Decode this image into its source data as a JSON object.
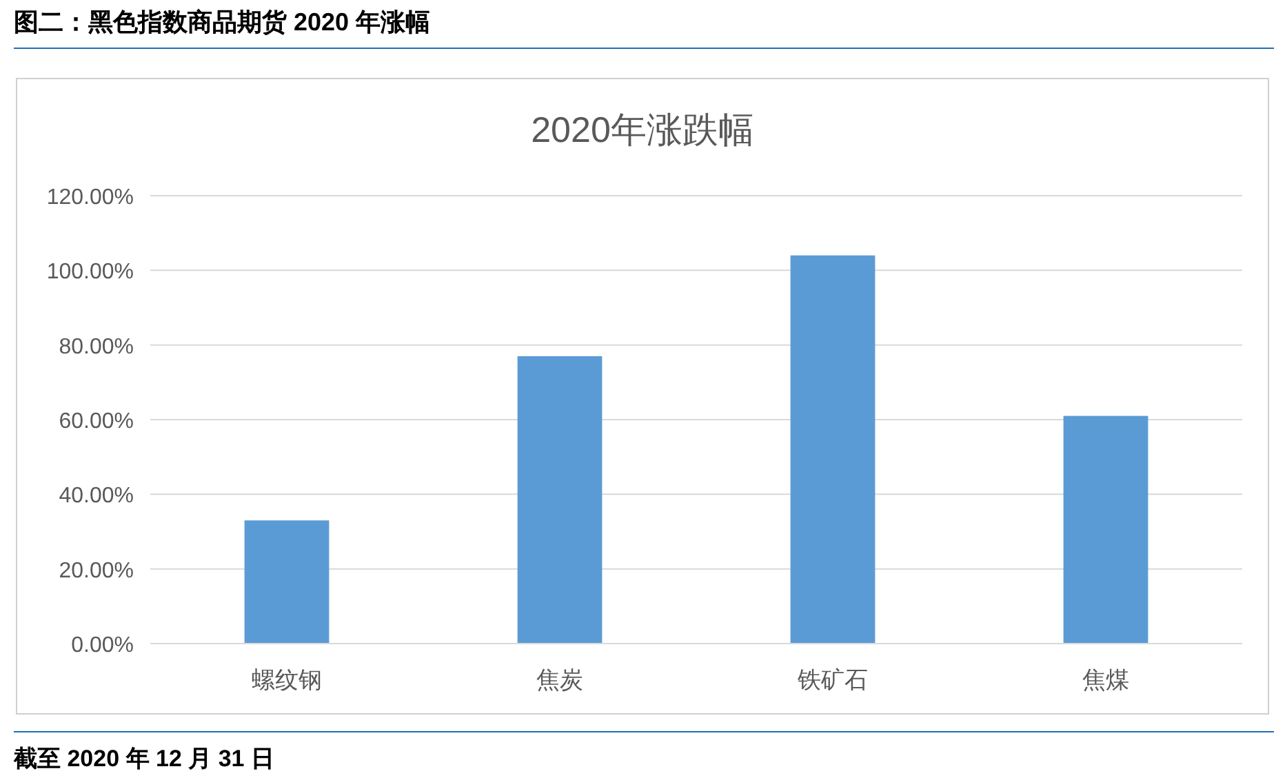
{
  "chart_data": {
    "type": "bar",
    "title": "图二：黑色指数商品期货 2020 年涨幅",
    "subtitle": "2020年涨跌幅",
    "categories": [
      "螺纹钢",
      "焦炭",
      "铁矿石",
      "焦煤"
    ],
    "values": [
      33,
      77,
      104,
      61
    ],
    "color": "#5b9bd5",
    "ylim": [
      0,
      120
    ],
    "yticks": [
      {
        "value": 0,
        "label": "0.00%"
      },
      {
        "value": 20,
        "label": "20.00%"
      },
      {
        "value": 40,
        "label": "40.00%"
      },
      {
        "value": 60,
        "label": "60.00%"
      },
      {
        "value": 80,
        "label": "80.00%"
      },
      {
        "value": 100,
        "label": "100.00%"
      },
      {
        "value": 120,
        "label": "120.00%"
      }
    ],
    "grid": "y",
    "annotations": [
      "截至 2020 年 12 月 31 日"
    ]
  }
}
